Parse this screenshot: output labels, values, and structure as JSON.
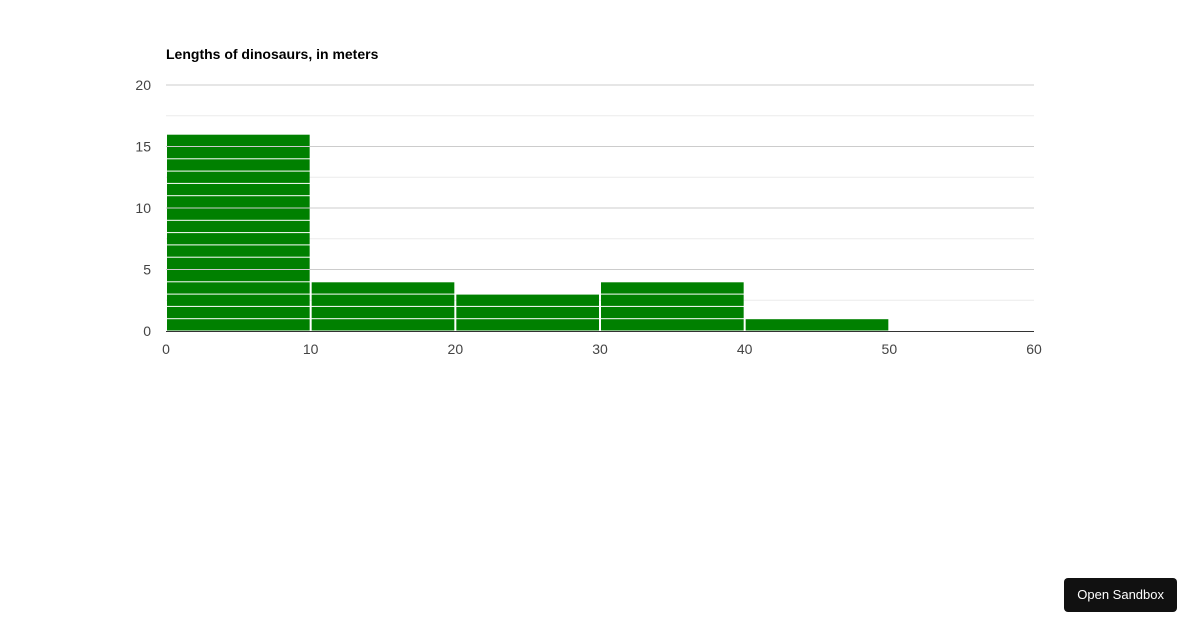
{
  "chart_data": {
    "type": "bar",
    "title": "Lengths of dinosaurs, in meters",
    "xlabel": "",
    "ylabel": "",
    "bins": [
      [
        0,
        10
      ],
      [
        10,
        20
      ],
      [
        20,
        30
      ],
      [
        30,
        40
      ],
      [
        40,
        50
      ]
    ],
    "values": [
      16,
      4,
      3,
      4,
      1
    ],
    "xlim": [
      0,
      60
    ],
    "ylim": [
      0,
      20
    ],
    "x_ticks": [
      0,
      10,
      20,
      30,
      40,
      50,
      60
    ],
    "y_ticks": [
      0,
      5,
      10,
      15,
      20
    ],
    "grid": true,
    "legend": "none",
    "bar_color": "#008000",
    "stacked_units": true
  },
  "sandbox_button": {
    "label": "Open Sandbox"
  }
}
